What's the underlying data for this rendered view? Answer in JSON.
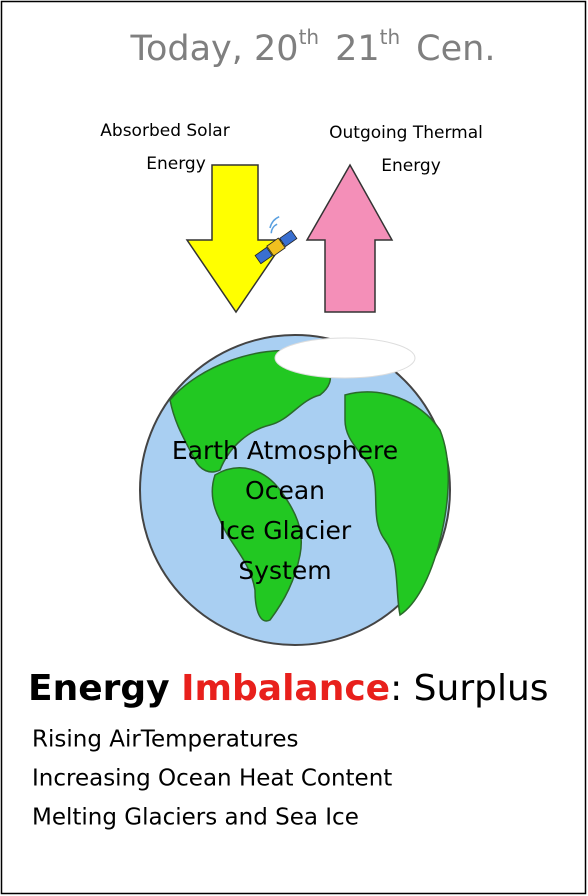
{
  "title": {
    "segments": [
      {
        "text": "Today, 20",
        "sup": false
      },
      {
        "text": "th",
        "sup": true
      },
      {
        "text": "21",
        "sup": false
      },
      {
        "text": "th",
        "sup": true
      },
      {
        "text": "Cen.",
        "sup": false
      }
    ]
  },
  "absorbed_label": [
    "Absorbed  Solar",
    "Energy"
  ],
  "outgoing_label": [
    "Outgoing Thermal",
    "Energy"
  ],
  "earth_label": [
    "Earth Atmosphere",
    "Ocean",
    "Ice Glacier",
    "System"
  ],
  "heading": {
    "word1": "Energy",
    "word2": "Imbalance",
    "rest": ": Surplus"
  },
  "effects": [
    "Rising AirTemperatures",
    "Increasing Ocean Heat Content",
    "Melting Glaciers and Sea Ice"
  ]
}
